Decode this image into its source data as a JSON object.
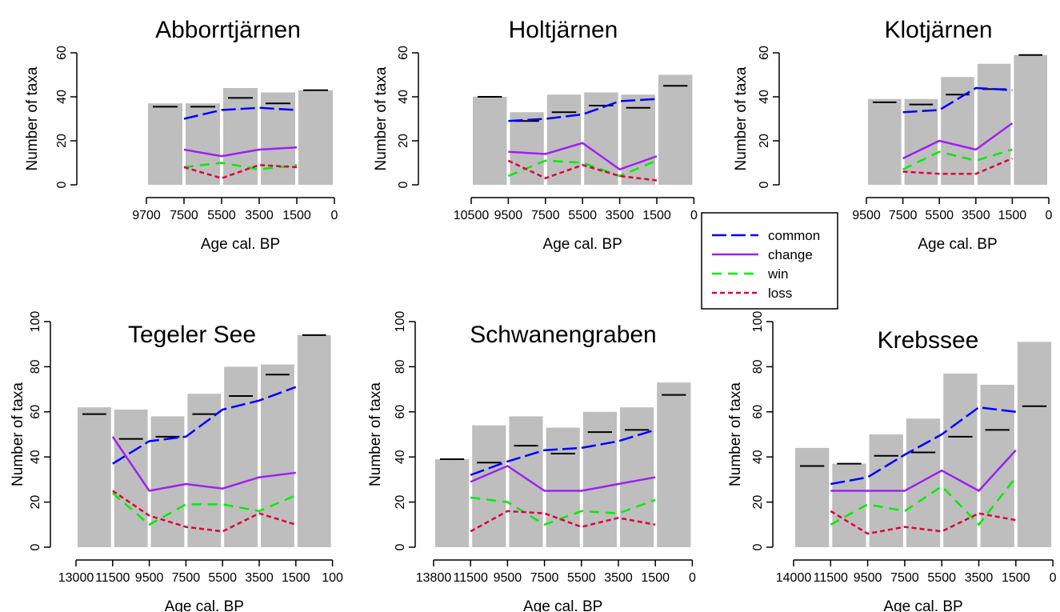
{
  "legend": {
    "items": [
      {
        "label": "common",
        "color": "#0000ff",
        "dash": "longdash"
      },
      {
        "label": "change",
        "color": "#a020f0",
        "dash": "solid"
      },
      {
        "label": "win",
        "color": "#00ee00",
        "dash": "dashed"
      },
      {
        "label": "loss",
        "color": "#e0003a",
        "dash": "dotted"
      }
    ]
  },
  "chart_data": [
    {
      "type": "bar",
      "title": "Abborrtjärnen",
      "xlabel": "Age cal. BP",
      "ylabel": "Number of taxa",
      "ylim": [
        0,
        60
      ],
      "yticks": [
        0,
        20,
        40,
        60
      ],
      "xticks": [
        "9700",
        "7500",
        "5500",
        "3500",
        "1500",
        "0"
      ],
      "bars": [
        37,
        37,
        44,
        42,
        43
      ],
      "marks": [
        35.5,
        35.5,
        39.5,
        37,
        43
      ],
      "series": [
        {
          "name": "common",
          "values": [
            30,
            34,
            35,
            34
          ]
        },
        {
          "name": "change",
          "values": [
            16,
            13,
            16,
            17
          ]
        },
        {
          "name": "win",
          "values": [
            8,
            10,
            7,
            9
          ]
        },
        {
          "name": "loss",
          "values": [
            8,
            3,
            9,
            8
          ]
        }
      ]
    },
    {
      "type": "bar",
      "title": "Holtjärnen",
      "xlabel": "Age cal. BP",
      "ylabel": "Number of taxa",
      "ylim": [
        0,
        60
      ],
      "yticks": [
        0,
        20,
        40,
        60
      ],
      "xticks": [
        "10500",
        "9500",
        "7500",
        "5500",
        "3500",
        "1500",
        "0"
      ],
      "bars": [
        40,
        33,
        41,
        42,
        41,
        50
      ],
      "marks": [
        40,
        29,
        33,
        36,
        35,
        45
      ],
      "series": [
        {
          "name": "common",
          "values": [
            29,
            30,
            32,
            38,
            39
          ]
        },
        {
          "name": "change",
          "values": [
            15,
            14,
            19,
            7,
            13
          ]
        },
        {
          "name": "win",
          "values": [
            4,
            11,
            10,
            4,
            11
          ]
        },
        {
          "name": "loss",
          "values": [
            11,
            3,
            9,
            4,
            2
          ]
        }
      ]
    },
    {
      "type": "bar",
      "title": "Klotjärnen",
      "xlabel": "Age cal. BP",
      "ylabel": "Number of taxa",
      "ylim": [
        0,
        60
      ],
      "yticks": [
        0,
        20,
        40,
        60
      ],
      "xticks": [
        "9500",
        "7500",
        "5500",
        "3500",
        "1500",
        "0"
      ],
      "bars": [
        39,
        39,
        49,
        55,
        59
      ],
      "marks": [
        37.5,
        36.5,
        41,
        43.5,
        59
      ],
      "series": [
        {
          "name": "common",
          "values": [
            33,
            34,
            44,
            43
          ]
        },
        {
          "name": "change",
          "values": [
            12,
            20,
            16,
            28
          ]
        },
        {
          "name": "win",
          "values": [
            7,
            15,
            11,
            16
          ]
        },
        {
          "name": "loss",
          "values": [
            6,
            5,
            5,
            12
          ]
        }
      ]
    },
    {
      "type": "bar",
      "title": "Tegeler See",
      "xlabel": "Age cal. BP",
      "ylabel": "Number of taxa",
      "ylim": [
        0,
        100
      ],
      "yticks": [
        0,
        20,
        40,
        60,
        80,
        100
      ],
      "xticks": [
        "13000",
        "11500",
        "9500",
        "7500",
        "5500",
        "3500",
        "1500",
        "100"
      ],
      "bars": [
        62,
        61,
        58,
        68,
        80,
        81,
        94
      ],
      "marks": [
        59,
        48,
        49,
        59,
        67,
        76.5,
        94
      ],
      "series": [
        {
          "name": "common",
          "values": [
            37,
            47,
            49,
            61,
            65,
            71
          ]
        },
        {
          "name": "change",
          "values": [
            49,
            25,
            28,
            26,
            31,
            33
          ]
        },
        {
          "name": "win",
          "values": [
            24,
            10,
            19,
            19,
            16,
            23
          ]
        },
        {
          "name": "loss",
          "values": [
            25,
            14,
            9,
            7,
            15,
            10
          ]
        }
      ]
    },
    {
      "type": "bar",
      "title": "Schwanengraben",
      "xlabel": "Age cal. BP",
      "ylabel": "Number of taxa",
      "ylim": [
        0,
        100
      ],
      "yticks": [
        0,
        20,
        40,
        60,
        80,
        100
      ],
      "xticks": [
        "13800",
        "11500",
        "9500",
        "7500",
        "5500",
        "3500",
        "1500",
        "0"
      ],
      "bars": [
        39,
        54,
        58,
        53,
        60,
        62,
        73
      ],
      "marks": [
        39,
        37.5,
        45,
        41.5,
        51,
        52,
        67.5
      ],
      "series": [
        {
          "name": "common",
          "values": [
            32,
            38,
            43,
            44,
            47,
            52
          ]
        },
        {
          "name": "change",
          "values": [
            29,
            36,
            25,
            25,
            28,
            31
          ]
        },
        {
          "name": "win",
          "values": [
            22,
            20,
            10,
            16,
            15,
            21
          ]
        },
        {
          "name": "loss",
          "values": [
            7,
            16,
            15,
            9,
            13,
            10
          ]
        }
      ]
    },
    {
      "type": "bar",
      "title": "Krebssee",
      "xlabel": "Age cal. BP",
      "ylabel": "Number of taxa",
      "ylim": [
        0,
        100
      ],
      "yticks": [
        0,
        20,
        40,
        60,
        80,
        100
      ],
      "xticks": [
        "14000",
        "11500",
        "9500",
        "7500",
        "5500",
        "3500",
        "1500",
        "0"
      ],
      "bars": [
        44,
        37,
        50,
        57,
        77,
        72,
        91
      ],
      "marks": [
        36,
        37,
        40.5,
        42,
        49,
        52,
        62.5
      ],
      "series": [
        {
          "name": "common",
          "values": [
            28,
            31,
            41,
            50,
            62,
            60
          ]
        },
        {
          "name": "change",
          "values": [
            25,
            25,
            25,
            34,
            25,
            43
          ]
        },
        {
          "name": "win",
          "values": [
            10,
            19,
            16,
            27,
            10,
            31
          ]
        },
        {
          "name": "loss",
          "values": [
            16,
            6,
            9,
            7,
            15,
            12
          ]
        }
      ]
    }
  ]
}
